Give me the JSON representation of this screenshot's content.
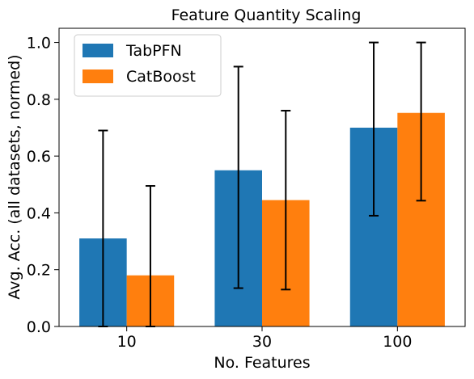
{
  "chart_data": {
    "type": "bar",
    "title": "Feature Quantity Scaling",
    "xlabel": "No. Features",
    "ylabel": "Avg. Acc. (all datasets, normed)",
    "categories": [
      "10",
      "30",
      "100"
    ],
    "ylim": [
      0,
      1.05
    ],
    "yticks": [
      0.0,
      0.2,
      0.4,
      0.6,
      0.8,
      1.0
    ],
    "ytick_labels": [
      "0.0",
      "0.2",
      "0.4",
      "0.6",
      "0.8",
      "1.0"
    ],
    "grid": false,
    "legend_position": "top-left",
    "series": [
      {
        "name": "TabPFN",
        "color": "#1f77b4",
        "values": [
          0.31,
          0.55,
          0.7
        ],
        "err_low": [
          0.0,
          0.135,
          0.39
        ],
        "err_high": [
          0.69,
          0.915,
          1.0
        ]
      },
      {
        "name": "CatBoost",
        "color": "#ff7f0e",
        "values": [
          0.18,
          0.445,
          0.752
        ],
        "err_low": [
          0.0,
          0.13,
          0.443
        ],
        "err_high": [
          0.495,
          0.76,
          1.0
        ]
      }
    ]
  }
}
